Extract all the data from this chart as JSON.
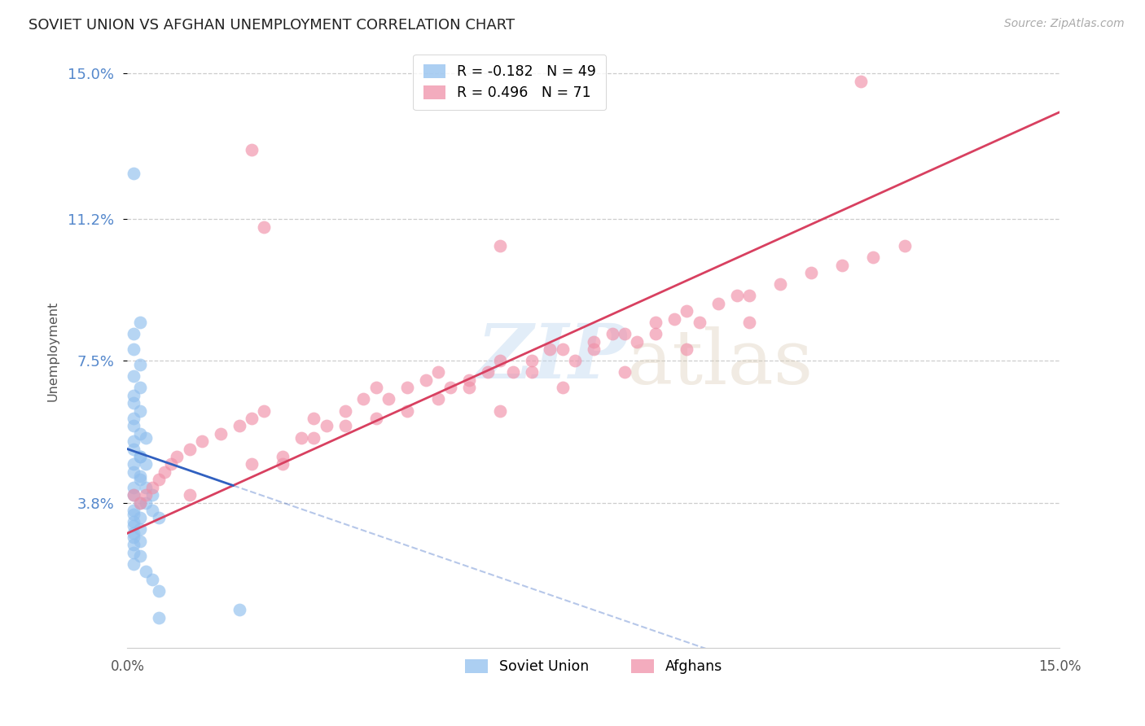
{
  "title": "SOVIET UNION VS AFGHAN UNEMPLOYMENT CORRELATION CHART",
  "source": "Source: ZipAtlas.com",
  "ylabel": "Unemployment",
  "xmin": 0.0,
  "xmax": 0.15,
  "ymin": 0.0,
  "ymax": 0.155,
  "yticks": [
    0.038,
    0.075,
    0.112,
    0.15
  ],
  "ytick_labels": [
    "3.8%",
    "7.5%",
    "11.2%",
    "15.0%"
  ],
  "soviet_color": "#90bfee",
  "afghan_color": "#f090a8",
  "soviet_R": -0.182,
  "soviet_N": 49,
  "afghan_R": 0.496,
  "afghan_N": 71,
  "soviet_line_color": "#3060c0",
  "afghan_line_color": "#d84060",
  "background_color": "#ffffff",
  "grid_color": "#c8c8c8",
  "label_color": "#5588cc",
  "title_color": "#222222",
  "source_color": "#aaaaaa",
  "soviet_x": [
    0.001,
    0.002,
    0.001,
    0.001,
    0.002,
    0.001,
    0.002,
    0.001,
    0.001,
    0.002,
    0.001,
    0.001,
    0.002,
    0.001,
    0.001,
    0.002,
    0.001,
    0.001,
    0.002,
    0.001,
    0.001,
    0.002,
    0.001,
    0.001,
    0.002,
    0.001,
    0.001,
    0.002,
    0.001,
    0.001,
    0.002,
    0.001,
    0.001,
    0.002,
    0.001,
    0.003,
    0.002,
    0.003,
    0.002,
    0.003,
    0.004,
    0.003,
    0.004,
    0.005,
    0.003,
    0.004,
    0.005,
    0.018,
    0.005
  ],
  "soviet_y": [
    0.124,
    0.085,
    0.082,
    0.078,
    0.074,
    0.071,
    0.068,
    0.066,
    0.064,
    0.062,
    0.06,
    0.058,
    0.056,
    0.054,
    0.052,
    0.05,
    0.048,
    0.046,
    0.044,
    0.042,
    0.04,
    0.038,
    0.036,
    0.035,
    0.034,
    0.033,
    0.032,
    0.031,
    0.03,
    0.029,
    0.028,
    0.027,
    0.025,
    0.024,
    0.022,
    0.055,
    0.05,
    0.048,
    0.045,
    0.042,
    0.04,
    0.038,
    0.036,
    0.034,
    0.02,
    0.018,
    0.015,
    0.01,
    0.008
  ],
  "afghan_x": [
    0.001,
    0.002,
    0.003,
    0.004,
    0.005,
    0.006,
    0.007,
    0.008,
    0.01,
    0.012,
    0.015,
    0.018,
    0.02,
    0.022,
    0.025,
    0.028,
    0.03,
    0.032,
    0.035,
    0.038,
    0.04,
    0.042,
    0.045,
    0.048,
    0.05,
    0.052,
    0.055,
    0.058,
    0.06,
    0.062,
    0.065,
    0.068,
    0.07,
    0.072,
    0.075,
    0.078,
    0.08,
    0.082,
    0.085,
    0.088,
    0.09,
    0.092,
    0.095,
    0.098,
    0.1,
    0.105,
    0.11,
    0.115,
    0.12,
    0.125,
    0.01,
    0.02,
    0.03,
    0.04,
    0.05,
    0.06,
    0.07,
    0.08,
    0.09,
    0.1,
    0.025,
    0.035,
    0.045,
    0.055,
    0.065,
    0.075,
    0.085,
    0.022,
    0.118,
    0.02,
    0.06
  ],
  "afghan_y": [
    0.04,
    0.038,
    0.04,
    0.042,
    0.044,
    0.046,
    0.048,
    0.05,
    0.052,
    0.054,
    0.056,
    0.058,
    0.06,
    0.062,
    0.05,
    0.055,
    0.06,
    0.058,
    0.062,
    0.065,
    0.068,
    0.065,
    0.068,
    0.07,
    0.072,
    0.068,
    0.07,
    0.072,
    0.075,
    0.072,
    0.075,
    0.078,
    0.078,
    0.075,
    0.08,
    0.082,
    0.082,
    0.08,
    0.085,
    0.086,
    0.088,
    0.085,
    0.09,
    0.092,
    0.092,
    0.095,
    0.098,
    0.1,
    0.102,
    0.105,
    0.04,
    0.048,
    0.055,
    0.06,
    0.065,
    0.062,
    0.068,
    0.072,
    0.078,
    0.085,
    0.048,
    0.058,
    0.062,
    0.068,
    0.072,
    0.078,
    0.082,
    0.11,
    0.148,
    0.13,
    0.105
  ]
}
